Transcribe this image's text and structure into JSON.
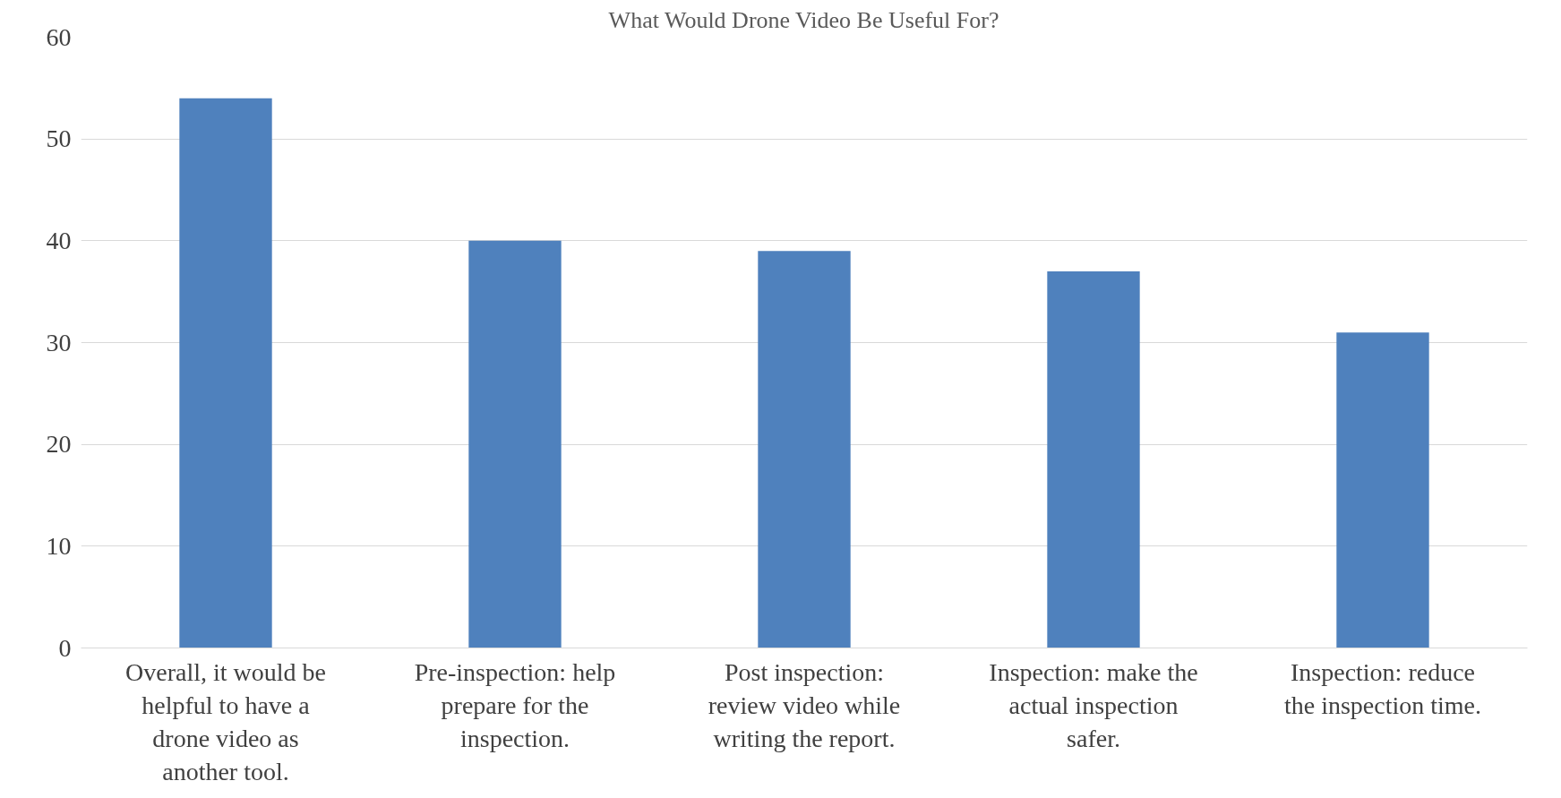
{
  "chart_data": {
    "type": "bar",
    "title": "What Would Drone Video Be Useful For?",
    "categories": [
      "Overall, it would be helpful to have a drone video as another tool.",
      "Pre-inspection: help prepare for the inspection.",
      "Post inspection: review video while writing the report.",
      "Inspection: make the actual inspection safer.",
      "Inspection: reduce the inspection time."
    ],
    "values": [
      54,
      40,
      39,
      37,
      31
    ],
    "color": "#4f81bd",
    "ylim": [
      0,
      60
    ],
    "yticks": [
      0,
      10,
      20,
      30,
      40,
      50,
      60
    ],
    "grid": "y"
  }
}
